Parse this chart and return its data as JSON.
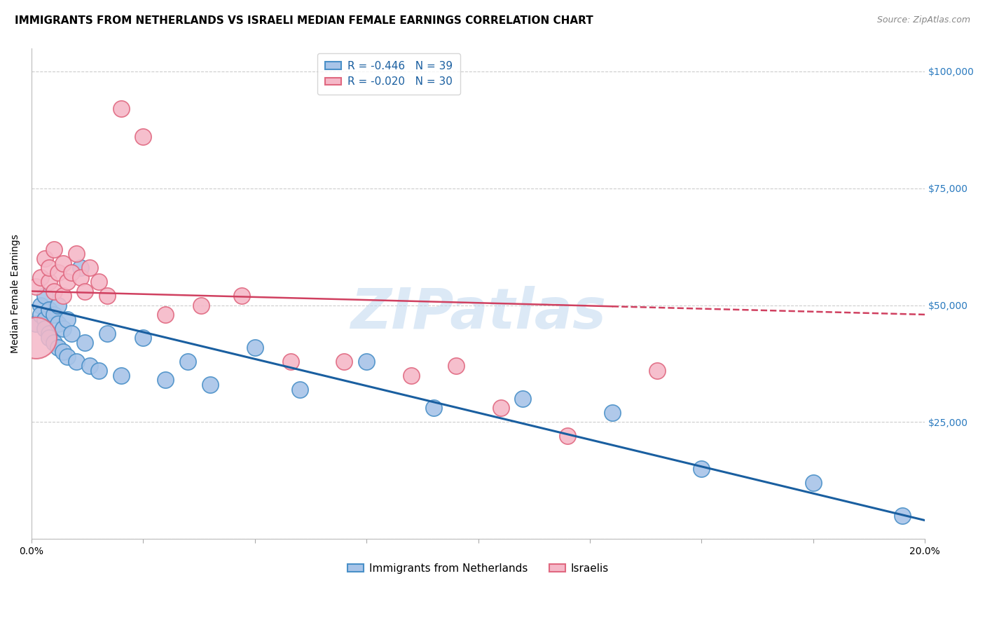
{
  "title": "IMMIGRANTS FROM NETHERLANDS VS ISRAELI MEDIAN FEMALE EARNINGS CORRELATION CHART",
  "source": "Source: ZipAtlas.com",
  "ylabel": "Median Female Earnings",
  "ytick_values": [
    0,
    25000,
    50000,
    75000,
    100000
  ],
  "xlim": [
    0.0,
    0.2
  ],
  "ylim": [
    0,
    105000
  ],
  "blue_R": "-0.446",
  "blue_N": "39",
  "pink_R": "-0.020",
  "pink_N": "30",
  "blue_fill": "#a8c4e8",
  "pink_fill": "#f5b8c8",
  "blue_edge": "#4a90c8",
  "pink_edge": "#e06880",
  "blue_trend_color": "#1a5fa0",
  "pink_trend_color": "#d04060",
  "watermark": "ZIPatlas",
  "legend_label_blue": "Immigrants from Netherlands",
  "legend_label_pink": "Israelis",
  "blue_scatter_x": [
    0.001,
    0.002,
    0.002,
    0.003,
    0.003,
    0.003,
    0.004,
    0.004,
    0.004,
    0.005,
    0.005,
    0.006,
    0.006,
    0.006,
    0.007,
    0.007,
    0.008,
    0.008,
    0.009,
    0.01,
    0.011,
    0.012,
    0.013,
    0.015,
    0.017,
    0.02,
    0.025,
    0.03,
    0.035,
    0.04,
    0.05,
    0.06,
    0.075,
    0.09,
    0.11,
    0.13,
    0.15,
    0.175,
    0.195
  ],
  "blue_scatter_y": [
    46000,
    50000,
    48000,
    52000,
    47000,
    45000,
    49000,
    44000,
    43000,
    48000,
    42000,
    50000,
    46000,
    41000,
    45000,
    40000,
    47000,
    39000,
    44000,
    38000,
    58000,
    42000,
    37000,
    36000,
    44000,
    35000,
    43000,
    34000,
    38000,
    33000,
    41000,
    32000,
    38000,
    28000,
    30000,
    27000,
    15000,
    12000,
    5000
  ],
  "pink_scatter_x": [
    0.001,
    0.002,
    0.003,
    0.004,
    0.004,
    0.005,
    0.005,
    0.006,
    0.007,
    0.007,
    0.008,
    0.009,
    0.01,
    0.011,
    0.012,
    0.013,
    0.015,
    0.017,
    0.02,
    0.025,
    0.03,
    0.038,
    0.047,
    0.058,
    0.07,
    0.085,
    0.095,
    0.105,
    0.12,
    0.14
  ],
  "pink_scatter_y": [
    54000,
    56000,
    60000,
    55000,
    58000,
    62000,
    53000,
    57000,
    59000,
    52000,
    55000,
    57000,
    61000,
    56000,
    53000,
    58000,
    55000,
    52000,
    92000,
    86000,
    48000,
    50000,
    52000,
    38000,
    38000,
    35000,
    37000,
    28000,
    22000,
    36000
  ],
  "blue_line_x": [
    0.0,
    0.2
  ],
  "blue_line_y": [
    50000,
    4000
  ],
  "pink_line_x": [
    0.0,
    0.2
  ],
  "pink_line_y": [
    53000,
    48000
  ],
  "title_fontsize": 11,
  "source_fontsize": 9,
  "axis_label_fontsize": 10,
  "tick_fontsize": 10,
  "legend_fontsize": 11,
  "dot_size": 280
}
